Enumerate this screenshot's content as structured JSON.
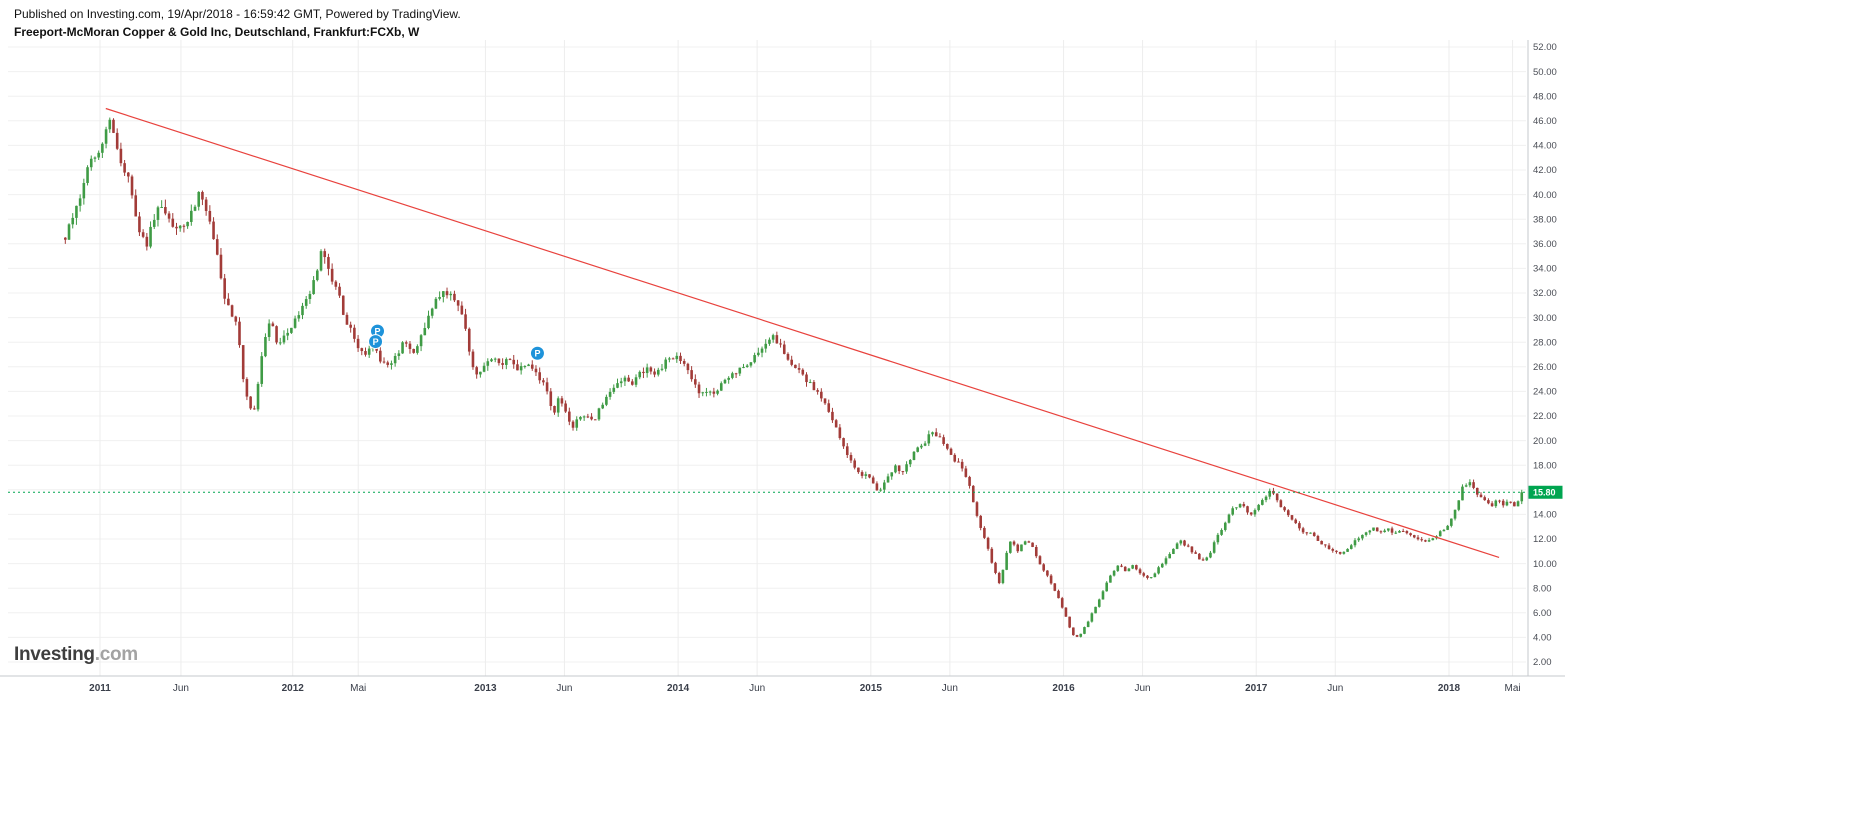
{
  "header": {
    "published_line": "Published on Investing.com, 19/Apr/2018 - 16:59:42 GMT, Powered by TradingView.",
    "instrument_line": "Freeport-McMoran Copper & Gold Inc, Deutschland, Frankfurt:FCXb, W"
  },
  "logo": {
    "name": "Investing",
    "suffix": ".com"
  },
  "price_axis": {
    "min": 2,
    "max": 52,
    "step": 2,
    "decimals": 2,
    "last_price_label": "15.80"
  },
  "time_axis": {
    "ticks": [
      {
        "label": "2011",
        "t": 2011.0,
        "major": true
      },
      {
        "label": "Jun",
        "t": 2011.42,
        "major": false
      },
      {
        "label": "2012",
        "t": 2012.0,
        "major": true
      },
      {
        "label": "Mai",
        "t": 2012.34,
        "major": false
      },
      {
        "label": "2013",
        "t": 2013.0,
        "major": true
      },
      {
        "label": "Jun",
        "t": 2013.41,
        "major": false
      },
      {
        "label": "2014",
        "t": 2014.0,
        "major": true
      },
      {
        "label": "Jun",
        "t": 2014.41,
        "major": false
      },
      {
        "label": "2015",
        "t": 2015.0,
        "major": true
      },
      {
        "label": "Jun",
        "t": 2015.41,
        "major": false
      },
      {
        "label": "2016",
        "t": 2016.0,
        "major": true
      },
      {
        "label": "Jun",
        "t": 2016.41,
        "major": false
      },
      {
        "label": "2017",
        "t": 2017.0,
        "major": true
      },
      {
        "label": "Jun",
        "t": 2017.41,
        "major": false
      },
      {
        "label": "2018",
        "t": 2018.0,
        "major": true
      },
      {
        "label": "Mai",
        "t": 2018.33,
        "major": false
      }
    ]
  },
  "chart_data": {
    "type": "candlestick",
    "interval": "W",
    "symbol": "Frankfurt:FCXb",
    "title": "Freeport-McMoran Copper & Gold Inc, Deutschland, Frankfurt:FCXb, W",
    "x_domain": [
      2010.8,
      2018.42
    ],
    "y_domain": [
      2,
      52
    ],
    "grid": true,
    "legend": "none",
    "last_close": 15.8,
    "noise_seed": 12,
    "colors": {
      "up": "#3f9b45",
      "down": "#a23b38",
      "trend": "#e8423d",
      "level": "#00a550",
      "marker": "#1e93da",
      "grid": "#f0f0f0",
      "axis_text": "#3a3f4a",
      "axis_border": "#c6c9ce"
    },
    "trend_line": {
      "x1": 2011.03,
      "y1": 47.0,
      "x2": 2018.26,
      "y2": 10.5
    },
    "horizontal_line": {
      "price": 15.8,
      "style": "dotted"
    },
    "markers": [
      {
        "t": 2012.44,
        "price": 28.9,
        "label": "P"
      },
      {
        "t": 2012.43,
        "price": 28.05,
        "label": "P"
      },
      {
        "t": 2013.27,
        "price": 27.1,
        "label": "P"
      }
    ],
    "anchors": [
      [
        2010.82,
        36.5
      ],
      [
        2010.86,
        38.0
      ],
      [
        2010.9,
        40.0
      ],
      [
        2010.94,
        42.0
      ],
      [
        2010.98,
        43.5
      ],
      [
        2011.02,
        44.5
      ],
      [
        2011.05,
        46.3
      ],
      [
        2011.08,
        44.0
      ],
      [
        2011.12,
        42.5
      ],
      [
        2011.16,
        40.5
      ],
      [
        2011.2,
        37.5
      ],
      [
        2011.24,
        36.0
      ],
      [
        2011.28,
        37.8
      ],
      [
        2011.32,
        39.3
      ],
      [
        2011.36,
        38.0
      ],
      [
        2011.4,
        36.8
      ],
      [
        2011.44,
        37.5
      ],
      [
        2011.48,
        38.8
      ],
      [
        2011.52,
        40.2
      ],
      [
        2011.56,
        38.5
      ],
      [
        2011.6,
        36.0
      ],
      [
        2011.64,
        32.0
      ],
      [
        2011.68,
        30.5
      ],
      [
        2011.71,
        29.5
      ],
      [
        2011.74,
        25.5
      ],
      [
        2011.77,
        23.0
      ],
      [
        2011.8,
        22.5
      ],
      [
        2011.83,
        26.0
      ],
      [
        2011.86,
        28.5
      ],
      [
        2011.89,
        29.8
      ],
      [
        2011.92,
        27.8
      ],
      [
        2011.96,
        28.5
      ],
      [
        2012.0,
        29.5
      ],
      [
        2012.04,
        30.5
      ],
      [
        2012.08,
        31.5
      ],
      [
        2012.12,
        33.5
      ],
      [
        2012.15,
        35.3
      ],
      [
        2012.18,
        34.0
      ],
      [
        2012.22,
        32.8
      ],
      [
        2012.26,
        30.5
      ],
      [
        2012.3,
        29.0
      ],
      [
        2012.34,
        27.8
      ],
      [
        2012.38,
        26.8
      ],
      [
        2012.42,
        28.0
      ],
      [
        2012.46,
        26.3
      ],
      [
        2012.5,
        25.8
      ],
      [
        2012.54,
        26.8
      ],
      [
        2012.58,
        28.0
      ],
      [
        2012.62,
        27.2
      ],
      [
        2012.66,
        28.3
      ],
      [
        2012.7,
        29.8
      ],
      [
        2012.74,
        31.2
      ],
      [
        2012.78,
        32.3
      ],
      [
        2012.82,
        31.8
      ],
      [
        2012.86,
        31.2
      ],
      [
        2012.9,
        29.0
      ],
      [
        2012.93,
        25.8
      ],
      [
        2012.97,
        25.2
      ],
      [
        2013.0,
        26.3
      ],
      [
        2013.04,
        26.8
      ],
      [
        2013.08,
        26.0
      ],
      [
        2013.12,
        26.8
      ],
      [
        2013.16,
        25.8
      ],
      [
        2013.2,
        26.3
      ],
      [
        2013.24,
        26.0
      ],
      [
        2013.28,
        25.2
      ],
      [
        2013.32,
        24.0
      ],
      [
        2013.35,
        22.0
      ],
      [
        2013.38,
        23.8
      ],
      [
        2013.42,
        22.3
      ],
      [
        2013.45,
        20.9
      ],
      [
        2013.48,
        21.8
      ],
      [
        2013.52,
        22.3
      ],
      [
        2013.56,
        21.3
      ],
      [
        2013.6,
        22.8
      ],
      [
        2013.64,
        23.8
      ],
      [
        2013.68,
        24.3
      ],
      [
        2013.72,
        25.3
      ],
      [
        2013.76,
        24.5
      ],
      [
        2013.8,
        25.5
      ],
      [
        2013.84,
        26.0
      ],
      [
        2013.88,
        25.2
      ],
      [
        2013.92,
        26.2
      ],
      [
        2013.96,
        26.8
      ],
      [
        2014.0,
        26.9
      ],
      [
        2014.04,
        26.0
      ],
      [
        2014.08,
        24.5
      ],
      [
        2014.12,
        23.6
      ],
      [
        2014.16,
        24.3
      ],
      [
        2014.2,
        23.9
      ],
      [
        2014.24,
        24.8
      ],
      [
        2014.28,
        25.4
      ],
      [
        2014.32,
        25.9
      ],
      [
        2014.36,
        26.3
      ],
      [
        2014.4,
        26.9
      ],
      [
        2014.44,
        27.8
      ],
      [
        2014.48,
        28.6
      ],
      [
        2014.52,
        27.9
      ],
      [
        2014.56,
        26.8
      ],
      [
        2014.6,
        26.2
      ],
      [
        2014.64,
        25.3
      ],
      [
        2014.68,
        24.7
      ],
      [
        2014.72,
        23.9
      ],
      [
        2014.76,
        22.9
      ],
      [
        2014.8,
        21.5
      ],
      [
        2014.84,
        20.3
      ],
      [
        2014.88,
        18.9
      ],
      [
        2014.92,
        17.6
      ],
      [
        2014.96,
        17.2
      ],
      [
        2015.0,
        16.9
      ],
      [
        2015.04,
        15.9
      ],
      [
        2015.08,
        16.8
      ],
      [
        2015.12,
        17.9
      ],
      [
        2015.16,
        17.4
      ],
      [
        2015.2,
        18.4
      ],
      [
        2015.24,
        19.3
      ],
      [
        2015.28,
        19.9
      ],
      [
        2015.32,
        20.8
      ],
      [
        2015.36,
        20.1
      ],
      [
        2015.4,
        19.2
      ],
      [
        2015.44,
        18.3
      ],
      [
        2015.48,
        17.7
      ],
      [
        2015.52,
        15.9
      ],
      [
        2015.56,
        13.2
      ],
      [
        2015.6,
        11.6
      ],
      [
        2015.64,
        9.4
      ],
      [
        2015.67,
        8.3
      ],
      [
        2015.7,
        10.8
      ],
      [
        2015.73,
        11.9
      ],
      [
        2015.76,
        10.9
      ],
      [
        2015.8,
        11.9
      ],
      [
        2015.84,
        11.3
      ],
      [
        2015.88,
        9.9
      ],
      [
        2015.92,
        8.9
      ],
      [
        2015.96,
        7.6
      ],
      [
        2016.0,
        6.2
      ],
      [
        2016.03,
        4.9
      ],
      [
        2016.06,
        3.9
      ],
      [
        2016.09,
        4.3
      ],
      [
        2016.12,
        5.1
      ],
      [
        2016.16,
        6.3
      ],
      [
        2016.2,
        7.6
      ],
      [
        2016.24,
        8.9
      ],
      [
        2016.28,
        9.9
      ],
      [
        2016.32,
        9.4
      ],
      [
        2016.36,
        9.9
      ],
      [
        2016.4,
        9.1
      ],
      [
        2016.44,
        8.7
      ],
      [
        2016.48,
        9.4
      ],
      [
        2016.52,
        10.2
      ],
      [
        2016.56,
        11.1
      ],
      [
        2016.6,
        11.9
      ],
      [
        2016.64,
        11.4
      ],
      [
        2016.68,
        10.8
      ],
      [
        2016.72,
        10.2
      ],
      [
        2016.76,
        10.9
      ],
      [
        2016.8,
        12.3
      ],
      [
        2016.84,
        13.4
      ],
      [
        2016.88,
        14.4
      ],
      [
        2016.92,
        14.9
      ],
      [
        2016.96,
        13.9
      ],
      [
        2017.0,
        14.4
      ],
      [
        2017.04,
        15.4
      ],
      [
        2017.08,
        15.9
      ],
      [
        2017.12,
        14.9
      ],
      [
        2017.16,
        13.9
      ],
      [
        2017.2,
        13.4
      ],
      [
        2017.24,
        12.7
      ],
      [
        2017.28,
        12.4
      ],
      [
        2017.32,
        11.9
      ],
      [
        2017.36,
        11.4
      ],
      [
        2017.4,
        10.9
      ],
      [
        2017.44,
        10.8
      ],
      [
        2017.48,
        11.4
      ],
      [
        2017.52,
        11.9
      ],
      [
        2017.56,
        12.4
      ],
      [
        2017.6,
        12.9
      ],
      [
        2017.64,
        12.4
      ],
      [
        2017.68,
        12.9
      ],
      [
        2017.72,
        12.4
      ],
      [
        2017.76,
        12.7
      ],
      [
        2017.8,
        12.2
      ],
      [
        2017.84,
        11.9
      ],
      [
        2017.88,
        11.8
      ],
      [
        2017.92,
        12.2
      ],
      [
        2017.96,
        12.6
      ],
      [
        2018.0,
        13.1
      ],
      [
        2018.04,
        14.6
      ],
      [
        2018.07,
        16.2
      ],
      [
        2018.1,
        16.7
      ],
      [
        2018.13,
        16.1
      ],
      [
        2018.16,
        15.4
      ],
      [
        2018.19,
        15.1
      ],
      [
        2018.22,
        14.6
      ],
      [
        2018.25,
        15.2
      ],
      [
        2018.28,
        14.8
      ],
      [
        2018.31,
        14.9
      ],
      [
        2018.34,
        14.7
      ],
      [
        2018.38,
        15.8
      ]
    ]
  }
}
